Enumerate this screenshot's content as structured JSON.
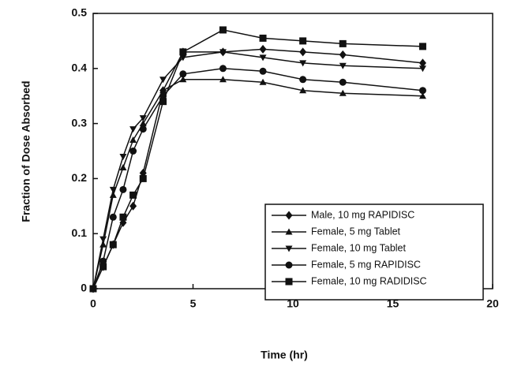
{
  "chart_data": {
    "type": "line",
    "xlabel": "Time (hr)",
    "ylabel": "Fraction of Dose Absorbed",
    "x": [
      0,
      0.5,
      1,
      1.5,
      2,
      2.5,
      3.5,
      4.5,
      6.5,
      8.5,
      10.5,
      12.5,
      16.5
    ],
    "series": [
      {
        "name": "Male, 10 mg RAPIDISC",
        "color": "#111111",
        "marker": "diamond",
        "values": [
          0,
          0.04,
          0.08,
          0.12,
          0.15,
          0.21,
          0.36,
          0.43,
          0.43,
          0.435,
          0.43,
          0.425,
          0.41
        ]
      },
      {
        "name": "Female, 5 mg Tablet",
        "color": "#111111",
        "marker": "triangle-up",
        "values": [
          0,
          0.08,
          0.17,
          0.22,
          0.27,
          0.3,
          0.36,
          0.38,
          0.38,
          0.375,
          0.36,
          0.355,
          0.35
        ]
      },
      {
        "name": "Female, 10 mg Tablet",
        "color": "#111111",
        "marker": "triangle-down",
        "values": [
          0,
          0.09,
          0.18,
          0.24,
          0.29,
          0.31,
          0.38,
          0.42,
          0.43,
          0.42,
          0.41,
          0.405,
          0.4
        ]
      },
      {
        "name": "Female, 5 mg RAPIDISC",
        "color": "#111111",
        "marker": "circle",
        "values": [
          0,
          0.05,
          0.13,
          0.18,
          0.25,
          0.29,
          0.35,
          0.39,
          0.4,
          0.395,
          0.38,
          0.375,
          0.36
        ]
      },
      {
        "name": "Female, 10 mg RADIDISC",
        "color": "#111111",
        "marker": "square",
        "values": [
          0,
          0.04,
          0.08,
          0.13,
          0.17,
          0.2,
          0.34,
          0.43,
          0.47,
          0.455,
          0.45,
          0.445,
          0.44
        ]
      }
    ],
    "xlim": [
      0,
      20
    ],
    "xticks": [
      0,
      5,
      10,
      15,
      20
    ],
    "ylim": [
      0,
      0.5
    ],
    "yticks": [
      0,
      0.1,
      0.2,
      0.3,
      0.4,
      0.5
    ],
    "grid": false,
    "legend": "lower right"
  }
}
